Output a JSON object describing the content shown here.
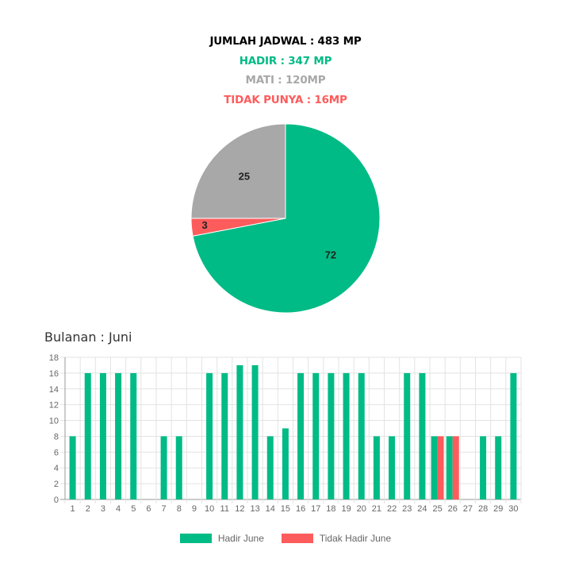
{
  "summary": {
    "total": "JUMLAH JADWAL : 483 MP",
    "hadir": "HADIR : 347 MP",
    "mati": "MATI : 120MP",
    "tidak_punya": "TIDAK PUNYA : 16MP"
  },
  "colors": {
    "total": "#000000",
    "hadir": "#00bb85",
    "mati": "#a8a8a8",
    "tidak_punya": "#fd5c5c"
  },
  "month_title": "Bulanan : Juni",
  "chart_data": [
    {
      "type": "pie",
      "slices": [
        {
          "label": "72",
          "value": 72,
          "color": "#00bb85"
        },
        {
          "label": "3",
          "value": 3,
          "color": "#fd5c5c"
        },
        {
          "label": "25",
          "value": 25,
          "color": "#a8a8a8"
        }
      ]
    },
    {
      "type": "bar",
      "categories": [
        "1",
        "2",
        "3",
        "4",
        "5",
        "6",
        "7",
        "8",
        "9",
        "10",
        "11",
        "12",
        "13",
        "14",
        "15",
        "16",
        "17",
        "18",
        "19",
        "20",
        "21",
        "22",
        "23",
        "24",
        "25",
        "26",
        "27",
        "28",
        "29",
        "30"
      ],
      "series": [
        {
          "name": "Hadir June",
          "color": "#00bb85",
          "values": [
            8,
            16,
            16,
            16,
            16,
            0,
            8,
            8,
            0,
            16,
            16,
            17,
            17,
            8,
            9,
            16,
            16,
            16,
            16,
            16,
            8,
            8,
            16,
            16,
            8,
            8,
            0,
            8,
            8,
            16
          ]
        },
        {
          "name": "Tidak Hadir June",
          "color": "#fd5c5c",
          "values": [
            0,
            0,
            0,
            0,
            0,
            0,
            0,
            0,
            0,
            0,
            0,
            0,
            0,
            0,
            0,
            0,
            0,
            0,
            0,
            0,
            0,
            0,
            0,
            0,
            8,
            8,
            0,
            0,
            0,
            0
          ]
        }
      ],
      "ylim": [
        0,
        18
      ],
      "yticks": [
        0,
        2,
        4,
        6,
        8,
        10,
        12,
        14,
        16,
        18
      ],
      "grid": true,
      "legend": "bottom"
    }
  ]
}
